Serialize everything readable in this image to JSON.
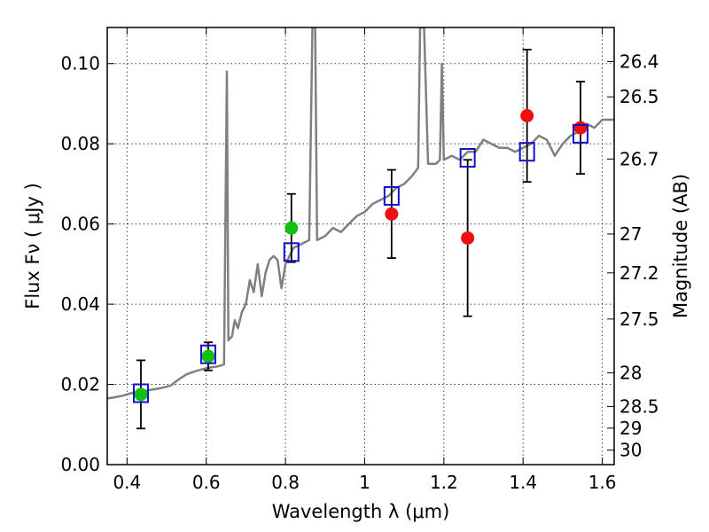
{
  "chart_data": {
    "type": "scatter",
    "title": "",
    "xlabel": "Wavelength  λ (μm)",
    "ylabel": "Flux  Fν  ( μJy )",
    "ylabel_right": "Magnitude (AB)",
    "xlim": [
      0.35,
      1.63
    ],
    "ylim": [
      0.0,
      0.109
    ],
    "grid": true,
    "x_ticks": [
      0.4,
      0.6,
      0.8,
      1.0,
      1.2,
      1.4,
      1.6
    ],
    "x_tick_labels": [
      "0.4",
      "0.6",
      "0.8",
      "1",
      "1.2",
      "1.4",
      "1.6"
    ],
    "y_ticks": [
      0.0,
      0.02,
      0.04,
      0.06,
      0.08,
      0.1
    ],
    "y_tick_labels": [
      "0.00",
      "0.02",
      "0.04",
      "0.06",
      "0.08",
      "0.10"
    ],
    "right_ticks": [
      {
        "label": "26.4",
        "flux": 0.1005
      },
      {
        "label": "26.5",
        "flux": 0.0917
      },
      {
        "label": "26.7",
        "flux": 0.0762
      },
      {
        "label": "27",
        "flux": 0.0575
      },
      {
        "label": "27.2",
        "flux": 0.0478
      },
      {
        "label": "27.5",
        "flux": 0.0363
      },
      {
        "label": "28",
        "flux": 0.0229
      },
      {
        "label": "28.5",
        "flux": 0.0145
      },
      {
        "label": "29",
        "flux": 0.0091
      },
      {
        "label": "30",
        "flux": 0.0036
      }
    ],
    "series": [
      {
        "kind": "line",
        "color": "#808080",
        "points": [
          [
            0.35,
            0.0165
          ],
          [
            0.37,
            0.0168
          ],
          [
            0.39,
            0.0172
          ],
          [
            0.41,
            0.0178
          ],
          [
            0.43,
            0.0182
          ],
          [
            0.45,
            0.0185
          ],
          [
            0.47,
            0.0188
          ],
          [
            0.49,
            0.0192
          ],
          [
            0.51,
            0.0197
          ],
          [
            0.53,
            0.0212
          ],
          [
            0.55,
            0.0225
          ],
          [
            0.57,
            0.0232
          ],
          [
            0.59,
            0.0238
          ],
          [
            0.61,
            0.0242
          ],
          [
            0.63,
            0.0245
          ],
          [
            0.645,
            0.025
          ],
          [
            0.652,
            0.098
          ],
          [
            0.656,
            0.031
          ],
          [
            0.665,
            0.032
          ],
          [
            0.672,
            0.036
          ],
          [
            0.68,
            0.034
          ],
          [
            0.69,
            0.038
          ],
          [
            0.7,
            0.04
          ],
          [
            0.71,
            0.046
          ],
          [
            0.72,
            0.043
          ],
          [
            0.73,
            0.05
          ],
          [
            0.74,
            0.042
          ],
          [
            0.75,
            0.048
          ],
          [
            0.76,
            0.051
          ],
          [
            0.77,
            0.052
          ],
          [
            0.78,
            0.051
          ],
          [
            0.79,
            0.044
          ],
          [
            0.8,
            0.05
          ],
          [
            0.82,
            0.054
          ],
          [
            0.84,
            0.055
          ],
          [
            0.86,
            0.056
          ],
          [
            0.868,
            0.109
          ],
          [
            0.875,
            0.109
          ],
          [
            0.88,
            0.056
          ],
          [
            0.9,
            0.057
          ],
          [
            0.92,
            0.059
          ],
          [
            0.94,
            0.058
          ],
          [
            0.96,
            0.06
          ],
          [
            0.98,
            0.062
          ],
          [
            1.0,
            0.063
          ],
          [
            1.02,
            0.065
          ],
          [
            1.04,
            0.066
          ],
          [
            1.06,
            0.067
          ],
          [
            1.08,
            0.069
          ],
          [
            1.1,
            0.07
          ],
          [
            1.12,
            0.072
          ],
          [
            1.135,
            0.074
          ],
          [
            1.14,
            0.109
          ],
          [
            1.15,
            0.109
          ],
          [
            1.16,
            0.075
          ],
          [
            1.18,
            0.075
          ],
          [
            1.19,
            0.076
          ],
          [
            1.195,
            0.1
          ],
          [
            1.2,
            0.076
          ],
          [
            1.22,
            0.077
          ],
          [
            1.24,
            0.076
          ],
          [
            1.26,
            0.078
          ],
          [
            1.28,
            0.078
          ],
          [
            1.3,
            0.081
          ],
          [
            1.32,
            0.08
          ],
          [
            1.34,
            0.079
          ],
          [
            1.36,
            0.079
          ],
          [
            1.38,
            0.078
          ],
          [
            1.4,
            0.079
          ],
          [
            1.42,
            0.08
          ],
          [
            1.44,
            0.082
          ],
          [
            1.46,
            0.081
          ],
          [
            1.48,
            0.077
          ],
          [
            1.5,
            0.08
          ],
          [
            1.52,
            0.082
          ],
          [
            1.54,
            0.083
          ],
          [
            1.56,
            0.085
          ],
          [
            1.58,
            0.084
          ],
          [
            1.6,
            0.086
          ],
          [
            1.63,
            0.086
          ]
        ]
      },
      {
        "kind": "points",
        "marker": "circle",
        "color": "#11c011",
        "points": [
          [
            0.435,
            0.0175
          ],
          [
            0.605,
            0.027
          ],
          [
            0.815,
            0.059
          ]
        ],
        "errors": [
          0.0085,
          0.0035,
          0.0085
        ]
      },
      {
        "kind": "points",
        "marker": "circle",
        "color": "#ee1010",
        "points": [
          [
            1.068,
            0.0625
          ],
          [
            1.26,
            0.0565
          ],
          [
            1.41,
            0.087
          ],
          [
            1.545,
            0.084
          ]
        ],
        "errors": [
          0.011,
          0.0195,
          0.0165,
          0.0115
        ]
      },
      {
        "kind": "points",
        "marker": "open-square",
        "color": "#1111cc",
        "points": [
          [
            0.435,
            0.0178
          ],
          [
            0.605,
            0.0275
          ],
          [
            0.815,
            0.053
          ],
          [
            1.068,
            0.067
          ],
          [
            1.26,
            0.0765
          ],
          [
            1.41,
            0.078
          ],
          [
            1.545,
            0.0825
          ]
        ]
      }
    ]
  }
}
